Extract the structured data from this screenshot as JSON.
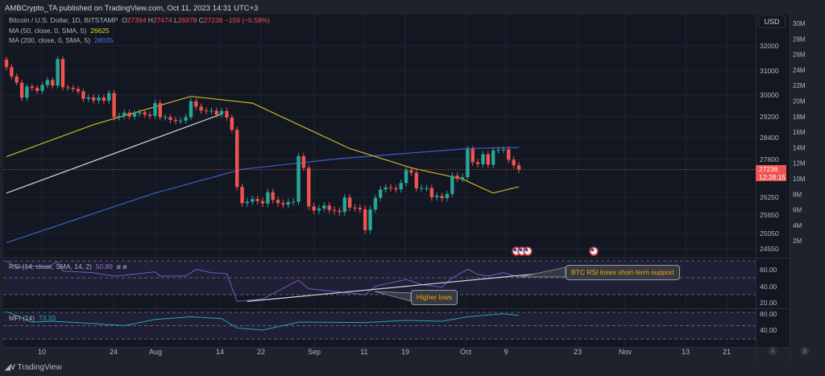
{
  "header": {
    "published": "AMBCrypto_TA published on TradingView.com, Oct 11, 2023 14:31 UTC+3"
  },
  "legend": {
    "symbol": "Bitcoin / U.S. Dollar, 1D, BITSTAMP",
    "o_label": "O",
    "o": "27394",
    "h_label": "H",
    "h": "27474",
    "l_label": "L",
    "l": "26978",
    "c_label": "C",
    "c": "27236",
    "change": "−159 (−0.58%)",
    "ma50_label": "MA (50, close, 0, SMA, 5)",
    "ma50_value": "26625",
    "ma200_label": "MA (200, close, 0, SMA, 5)",
    "ma200_value": "28035",
    "rsi_label": "RSI (14, close, SMA, 14, 2)",
    "rsi_value": "50.89",
    "rsi_extra": "ø ø",
    "mfi_label": "MFI (14)",
    "mfi_value": "73.33"
  },
  "currency": "USD",
  "last_price": {
    "price": "27236",
    "countdown": "12:28:15"
  },
  "annotations": {
    "rsi_support": "BTC RSI loses short-term support",
    "higher_lows": "Higher lows"
  },
  "bottom": {
    "brand": "TradingView",
    "scale_a": "A",
    "scale_b": "B"
  },
  "colors": {
    "background": "#131722",
    "up": "#26a69a",
    "down": "#ef5350",
    "ma50": "#c9b52a",
    "ma200": "#3d5ec9",
    "rsi": "#7e57c2",
    "mfi": "#26a3b5",
    "trendline": "#d1d4dc",
    "annotation_text": "#f7a600"
  },
  "icons": {
    "events": "us-flag-economic-event-icon"
  },
  "chart_data": [
    {
      "type": "candlestick",
      "symbol": "BTCUSD",
      "interval": "1D",
      "price_ticks": [
        "32000",
        "31000",
        "30000",
        "29200",
        "28400",
        "27600",
        "26250",
        "25650",
        "25050",
        "24550"
      ],
      "volume_ticks": [
        "30M",
        "28M",
        "26M",
        "24M",
        "22M",
        "20M",
        "18M",
        "16M",
        "14M",
        "12M",
        "10M",
        "8M",
        "6M",
        "4M",
        "2M"
      ],
      "x_ticks": [
        "10",
        "24",
        "Aug",
        "14",
        "22",
        "Sep",
        "11",
        "19",
        "Oct",
        "9",
        "23",
        "Nov",
        "13",
        "21"
      ],
      "closes": [
        [
          "2023-07-03",
          31150
        ],
        [
          "2023-07-04",
          30770
        ],
        [
          "2023-07-05",
          30510
        ],
        [
          "2023-07-06",
          29900
        ],
        [
          "2023-07-07",
          30350
        ],
        [
          "2023-07-08",
          30290
        ],
        [
          "2023-07-09",
          30170
        ],
        [
          "2023-07-10",
          30410
        ],
        [
          "2023-07-11",
          30620
        ],
        [
          "2023-07-12",
          30390
        ],
        [
          "2023-07-13",
          31470
        ],
        [
          "2023-07-14",
          30320
        ],
        [
          "2023-07-15",
          30300
        ],
        [
          "2023-07-16",
          30250
        ],
        [
          "2023-07-17",
          30150
        ],
        [
          "2023-07-18",
          29860
        ],
        [
          "2023-07-19",
          29910
        ],
        [
          "2023-07-20",
          29800
        ],
        [
          "2023-07-21",
          29910
        ],
        [
          "2023-07-22",
          29790
        ],
        [
          "2023-07-23",
          30080
        ],
        [
          "2023-07-24",
          29180
        ],
        [
          "2023-07-25",
          29230
        ],
        [
          "2023-07-26",
          29350
        ],
        [
          "2023-07-27",
          29210
        ],
        [
          "2023-07-28",
          29320
        ],
        [
          "2023-07-29",
          29360
        ],
        [
          "2023-07-30",
          29280
        ],
        [
          "2023-07-31",
          29230
        ],
        [
          "2023-08-01",
          29700
        ],
        [
          "2023-08-02",
          29180
        ],
        [
          "2023-08-03",
          29180
        ],
        [
          "2023-08-04",
          29080
        ],
        [
          "2023-08-05",
          29040
        ],
        [
          "2023-08-06",
          29050
        ],
        [
          "2023-08-07",
          29180
        ],
        [
          "2023-08-08",
          29770
        ],
        [
          "2023-08-09",
          29570
        ],
        [
          "2023-08-10",
          29430
        ],
        [
          "2023-08-11",
          29400
        ],
        [
          "2023-08-12",
          29420
        ],
        [
          "2023-08-13",
          29280
        ],
        [
          "2023-08-14",
          29410
        ],
        [
          "2023-08-15",
          29170
        ],
        [
          "2023-08-16",
          28700
        ],
        [
          "2023-08-17",
          26620
        ],
        [
          "2023-08-18",
          26050
        ],
        [
          "2023-08-19",
          26100
        ],
        [
          "2023-08-20",
          26190
        ],
        [
          "2023-08-21",
          26120
        ],
        [
          "2023-08-22",
          26040
        ],
        [
          "2023-08-23",
          26430
        ],
        [
          "2023-08-24",
          26160
        ],
        [
          "2023-08-25",
          26050
        ],
        [
          "2023-08-26",
          26000
        ],
        [
          "2023-08-27",
          26090
        ],
        [
          "2023-08-28",
          26100
        ],
        [
          "2023-08-29",
          27720
        ],
        [
          "2023-08-30",
          27300
        ],
        [
          "2023-08-31",
          25940
        ],
        [
          "2023-09-01",
          25800
        ],
        [
          "2023-09-02",
          25870
        ],
        [
          "2023-09-03",
          25970
        ],
        [
          "2023-09-04",
          25820
        ],
        [
          "2023-09-05",
          25790
        ],
        [
          "2023-09-06",
          25750
        ],
        [
          "2023-09-07",
          26240
        ],
        [
          "2023-09-08",
          25900
        ],
        [
          "2023-09-09",
          25890
        ],
        [
          "2023-09-10",
          25840
        ],
        [
          "2023-09-11",
          25160
        ],
        [
          "2023-09-12",
          25840
        ],
        [
          "2023-09-13",
          26230
        ],
        [
          "2023-09-14",
          26530
        ],
        [
          "2023-09-15",
          26600
        ],
        [
          "2023-09-16",
          26570
        ],
        [
          "2023-09-17",
          26530
        ],
        [
          "2023-09-18",
          26760
        ],
        [
          "2023-09-19",
          27210
        ],
        [
          "2023-09-20",
          27130
        ],
        [
          "2023-09-21",
          26570
        ],
        [
          "2023-09-22",
          26580
        ],
        [
          "2023-09-23",
          26580
        ],
        [
          "2023-09-24",
          26250
        ],
        [
          "2023-09-25",
          26300
        ],
        [
          "2023-09-26",
          26220
        ],
        [
          "2023-09-27",
          26370
        ],
        [
          "2023-09-28",
          27020
        ],
        [
          "2023-09-29",
          26910
        ],
        [
          "2023-09-30",
          26970
        ],
        [
          "2023-10-01",
          27980
        ],
        [
          "2023-10-02",
          27500
        ],
        [
          "2023-10-03",
          27430
        ],
        [
          "2023-10-04",
          27790
        ],
        [
          "2023-10-05",
          27410
        ],
        [
          "2023-10-06",
          27930
        ],
        [
          "2023-10-07",
          27950
        ],
        [
          "2023-10-08",
          27970
        ],
        [
          "2023-10-09",
          27590
        ],
        [
          "2023-10-10",
          27390
        ],
        [
          "2023-10-11",
          27236
        ]
      ],
      "ma50": [
        [
          "2023-07-03",
          27700
        ],
        [
          "2023-07-20",
          28900
        ],
        [
          "2023-08-08",
          29950
        ],
        [
          "2023-08-20",
          29700
        ],
        [
          "2023-09-08",
          28000
        ],
        [
          "2023-09-20",
          27300
        ],
        [
          "2023-09-30",
          26900
        ],
        [
          "2023-10-06",
          26400
        ],
        [
          "2023-10-11",
          26625
        ]
      ],
      "ma200": [
        [
          "2023-07-03",
          24750
        ],
        [
          "2023-08-01",
          26400
        ],
        [
          "2023-08-18",
          27250
        ],
        [
          "2023-09-06",
          27630
        ],
        [
          "2023-10-01",
          28000
        ],
        [
          "2023-10-11",
          28035
        ]
      ],
      "trendline": [
        [
          "2023-07-03",
          26400
        ],
        [
          "2023-08-14",
          29300
        ]
      ]
    },
    {
      "type": "line",
      "name": "RSI (14, close, SMA, 14, 2)",
      "y_ticks": [
        "60.00",
        "40.00",
        "20.00"
      ],
      "bands": [
        70,
        50,
        30
      ],
      "values": [
        [
          "2023-07-03",
          70
        ],
        [
          "2023-07-05",
          62
        ],
        [
          "2023-07-08",
          64
        ],
        [
          "2023-07-11",
          63
        ],
        [
          "2023-07-13",
          69
        ],
        [
          "2023-07-14",
          58
        ],
        [
          "2023-07-20",
          56
        ],
        [
          "2023-07-24",
          52
        ],
        [
          "2023-07-26",
          53
        ],
        [
          "2023-08-01",
          57
        ],
        [
          "2023-08-02",
          52
        ],
        [
          "2023-08-07",
          52
        ],
        [
          "2023-08-09",
          60
        ],
        [
          "2023-08-12",
          56
        ],
        [
          "2023-08-15",
          55
        ],
        [
          "2023-08-17",
          22
        ],
        [
          "2023-08-22",
          25
        ],
        [
          "2023-08-29",
          47
        ],
        [
          "2023-08-31",
          37
        ],
        [
          "2023-09-11",
          30
        ],
        [
          "2023-09-13",
          40
        ],
        [
          "2023-09-19",
          48
        ],
        [
          "2023-09-22",
          42
        ],
        [
          "2023-09-26",
          39
        ],
        [
          "2023-09-28",
          50
        ],
        [
          "2023-10-01",
          60
        ],
        [
          "2023-10-03",
          54
        ],
        [
          "2023-10-05",
          52
        ],
        [
          "2023-10-08",
          56
        ],
        [
          "2023-10-11",
          50.89
        ]
      ],
      "trendline": [
        [
          "2023-08-19",
          22
        ],
        [
          "2023-10-15",
          55
        ]
      ]
    },
    {
      "type": "line",
      "name": "MFI (14)",
      "y_ticks": [
        "80.00",
        "40.00"
      ],
      "bands": [
        80,
        50,
        20
      ],
      "values": [
        [
          "2023-07-03",
          82
        ],
        [
          "2023-07-08",
          58
        ],
        [
          "2023-07-12",
          60
        ],
        [
          "2023-07-20",
          55
        ],
        [
          "2023-07-26",
          50
        ],
        [
          "2023-08-01",
          64
        ],
        [
          "2023-08-08",
          70
        ],
        [
          "2023-08-14",
          66
        ],
        [
          "2023-08-17",
          45
        ],
        [
          "2023-08-22",
          40
        ],
        [
          "2023-08-29",
          58
        ],
        [
          "2023-09-11",
          57
        ],
        [
          "2023-09-19",
          62
        ],
        [
          "2023-09-26",
          60
        ],
        [
          "2023-10-01",
          70
        ],
        [
          "2023-10-08",
          77
        ],
        [
          "2023-10-11",
          73.33
        ]
      ]
    }
  ]
}
